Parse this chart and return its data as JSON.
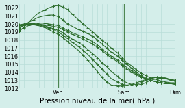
{
  "background_color": "#d4eeea",
  "grid_color": "#b8ddd8",
  "line_color": "#2d6e2d",
  "marker": "+",
  "markersize": 3,
  "linewidth": 0.8,
  "ylim": [
    1012,
    1022.5
  ],
  "yticks": [
    1012,
    1013,
    1014,
    1015,
    1016,
    1017,
    1018,
    1019,
    1020,
    1021,
    1022
  ],
  "xlabel": "Pression niveau de la mer( hPa )",
  "xlabel_fontsize": 7.5,
  "tick_fontsize": 6,
  "xtick_labels": [
    "",
    "Ven",
    "",
    "Sam",
    "",
    "Dim"
  ],
  "xtick_positions": [
    0.0,
    0.25,
    0.5,
    0.67,
    0.83,
    1.0
  ],
  "lines": [
    {
      "x": [
        0.0,
        0.03,
        0.06,
        0.09,
        0.12,
        0.16,
        0.19,
        0.22,
        0.25,
        0.28,
        0.31,
        0.34,
        0.38,
        0.41,
        0.44,
        0.47,
        0.5,
        0.53,
        0.56,
        0.59,
        0.63,
        0.66,
        0.69,
        0.72,
        0.75,
        0.78,
        0.81,
        0.84,
        0.88,
        0.91,
        0.94,
        0.97,
        1.0
      ],
      "y": [
        1019.1,
        1019.6,
        1020.2,
        1020.8,
        1021.3,
        1021.7,
        1022.0,
        1022.2,
        1022.3,
        1022.1,
        1021.8,
        1021.2,
        1020.5,
        1020.0,
        1019.5,
        1019.0,
        1018.5,
        1018.0,
        1017.5,
        1017.0,
        1016.4,
        1015.8,
        1015.2,
        1014.8,
        1014.3,
        1013.9,
        1013.6,
        1013.3,
        1013.1,
        1012.9,
        1012.8,
        1012.7,
        1012.7
      ]
    },
    {
      "x": [
        0.0,
        0.03,
        0.06,
        0.09,
        0.12,
        0.16,
        0.19,
        0.22,
        0.25,
        0.28,
        0.31,
        0.34,
        0.38,
        0.41,
        0.44,
        0.47,
        0.5,
        0.53,
        0.56,
        0.59,
        0.63,
        0.66,
        0.69,
        0.72,
        0.75,
        0.78,
        0.81,
        0.84,
        0.88,
        0.91,
        0.94,
        0.97,
        1.0
      ],
      "y": [
        1019.5,
        1019.9,
        1020.2,
        1020.5,
        1020.8,
        1021.0,
        1021.1,
        1021.1,
        1020.9,
        1020.5,
        1020.0,
        1019.7,
        1019.3,
        1019.1,
        1018.8,
        1018.5,
        1018.0,
        1017.5,
        1017.0,
        1016.5,
        1016.0,
        1015.5,
        1015.0,
        1014.5,
        1014.0,
        1013.6,
        1013.3,
        1013.0,
        1012.8,
        1012.7,
        1012.6,
        1012.6,
        1012.6
      ]
    },
    {
      "x": [
        0.0,
        0.03,
        0.06,
        0.09,
        0.12,
        0.16,
        0.19,
        0.22,
        0.25,
        0.28,
        0.31,
        0.34,
        0.38,
        0.41,
        0.44,
        0.47,
        0.5,
        0.53,
        0.56,
        0.59,
        0.63,
        0.66,
        0.69,
        0.72,
        0.75,
        0.78,
        0.81,
        0.84,
        0.88,
        0.91,
        0.94,
        0.97,
        1.0
      ],
      "y": [
        1019.8,
        1019.9,
        1020.0,
        1020.1,
        1020.1,
        1020.1,
        1020.0,
        1019.9,
        1019.8,
        1019.5,
        1019.2,
        1018.9,
        1018.6,
        1018.4,
        1018.1,
        1017.8,
        1017.4,
        1016.9,
        1016.4,
        1016.0,
        1015.5,
        1015.0,
        1014.6,
        1014.2,
        1013.8,
        1013.5,
        1013.2,
        1013.0,
        1012.8,
        1012.7,
        1012.6,
        1012.6,
        1012.5
      ]
    },
    {
      "x": [
        0.0,
        0.03,
        0.06,
        0.09,
        0.12,
        0.16,
        0.19,
        0.22,
        0.25,
        0.28,
        0.31,
        0.34,
        0.38,
        0.41,
        0.44,
        0.47,
        0.5,
        0.53,
        0.56,
        0.59,
        0.63,
        0.66,
        0.69,
        0.72,
        0.75,
        0.78,
        0.81,
        0.84,
        0.88,
        0.91,
        0.94,
        0.97,
        1.0
      ],
      "y": [
        1019.9,
        1020.0,
        1020.0,
        1020.0,
        1020.0,
        1019.9,
        1019.8,
        1019.7,
        1019.6,
        1019.3,
        1019.0,
        1018.7,
        1018.4,
        1018.1,
        1017.8,
        1017.5,
        1017.1,
        1016.7,
        1016.2,
        1015.8,
        1015.3,
        1014.8,
        1014.4,
        1014.0,
        1013.7,
        1013.4,
        1013.2,
        1013.0,
        1012.8,
        1012.7,
        1012.6,
        1012.6,
        1012.5
      ]
    },
    {
      "x": [
        0.0,
        0.03,
        0.06,
        0.09,
        0.12,
        0.16,
        0.19,
        0.22,
        0.25,
        0.28,
        0.31,
        0.34,
        0.38,
        0.41,
        0.44,
        0.47,
        0.5,
        0.53,
        0.56,
        0.59,
        0.63,
        0.66,
        0.69,
        0.72,
        0.75,
        0.78,
        0.81,
        0.84,
        0.88,
        0.91,
        0.94,
        0.97,
        1.0
      ],
      "y": [
        1019.7,
        1019.9,
        1020.0,
        1020.0,
        1019.9,
        1019.8,
        1019.6,
        1019.4,
        1019.2,
        1018.9,
        1018.5,
        1018.1,
        1017.7,
        1017.3,
        1016.8,
        1016.3,
        1015.8,
        1015.2,
        1014.7,
        1014.1,
        1013.5,
        1013.0,
        1012.7,
        1012.5,
        1012.4,
        1012.5,
        1012.7,
        1013.0,
        1013.2,
        1013.3,
        1013.2,
        1013.1,
        1013.0
      ]
    },
    {
      "x": [
        0.0,
        0.03,
        0.06,
        0.09,
        0.12,
        0.16,
        0.19,
        0.22,
        0.25,
        0.28,
        0.31,
        0.34,
        0.38,
        0.41,
        0.44,
        0.47,
        0.5,
        0.53,
        0.56,
        0.59,
        0.63,
        0.66,
        0.69,
        0.72,
        0.75,
        0.78,
        0.81,
        0.84,
        0.88,
        0.91,
        0.94,
        0.97,
        1.0
      ],
      "y": [
        1019.5,
        1019.8,
        1019.9,
        1020.0,
        1019.9,
        1019.7,
        1019.5,
        1019.3,
        1019.0,
        1018.6,
        1018.2,
        1017.7,
        1017.2,
        1016.7,
        1016.2,
        1015.6,
        1015.0,
        1014.4,
        1013.8,
        1013.2,
        1012.8,
        1012.5,
        1012.4,
        1012.4,
        1012.5,
        1012.7,
        1013.0,
        1013.2,
        1013.4,
        1013.4,
        1013.3,
        1013.1,
        1013.0
      ]
    },
    {
      "x": [
        0.0,
        0.03,
        0.06,
        0.09,
        0.12,
        0.16,
        0.19,
        0.22,
        0.25,
        0.28,
        0.31,
        0.34,
        0.38,
        0.41,
        0.44,
        0.47,
        0.5,
        0.53,
        0.56,
        0.59,
        0.63,
        0.66,
        0.69,
        0.72,
        0.75,
        0.78,
        0.81,
        0.84,
        0.88,
        0.91,
        0.94,
        0.97,
        1.0
      ],
      "y": [
        1019.2,
        1019.5,
        1019.8,
        1019.9,
        1019.8,
        1019.6,
        1019.3,
        1019.0,
        1018.7,
        1018.3,
        1017.8,
        1017.3,
        1016.7,
        1016.1,
        1015.5,
        1014.8,
        1014.1,
        1013.4,
        1012.8,
        1012.4,
        1012.3,
        1012.3,
        1012.4,
        1012.5,
        1012.7,
        1012.9,
        1013.1,
        1013.3,
        1013.4,
        1013.3,
        1013.2,
        1013.0,
        1012.9
      ]
    }
  ],
  "vline_positions": [
    0.25,
    0.67,
    1.0
  ],
  "vline_color": "#2d6e2d",
  "vline_alpha": 0.8,
  "n_vgrid": 33,
  "n_hgrid": 11
}
